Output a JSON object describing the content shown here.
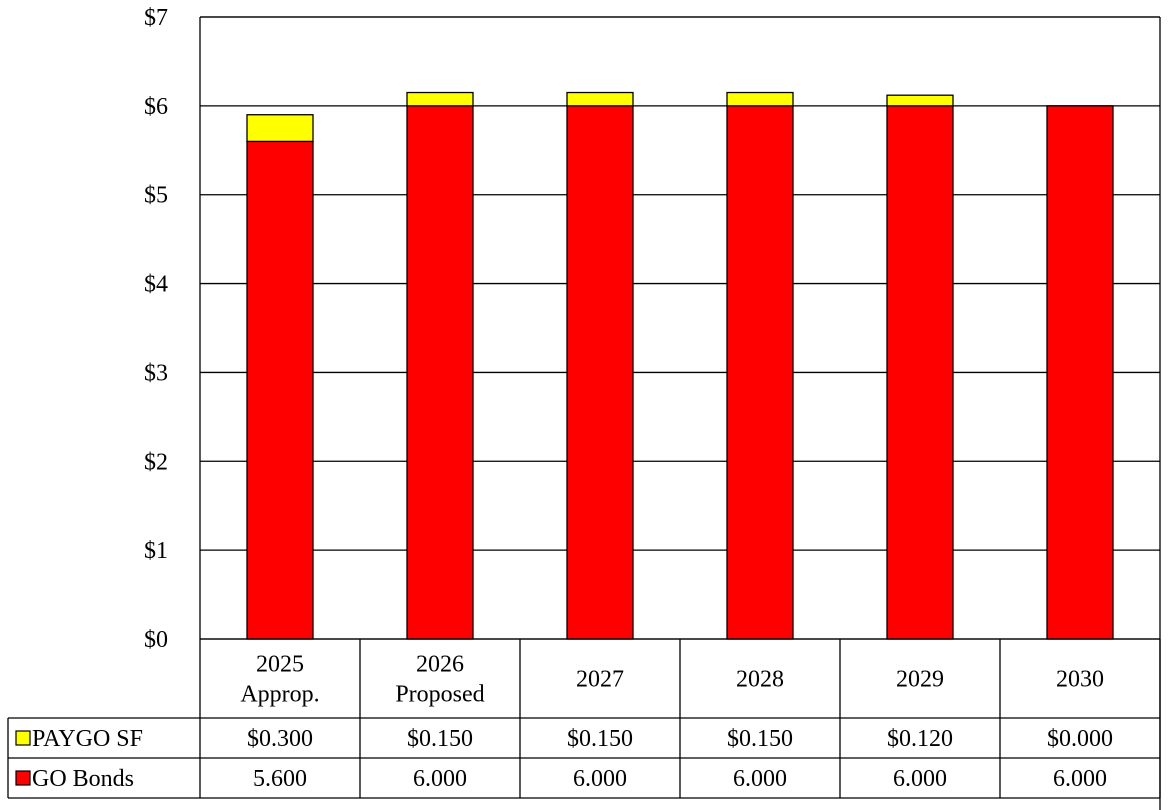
{
  "chart_data": {
    "type": "bar",
    "stacked": true,
    "title": "",
    "xlabel": "",
    "ylabel": "",
    "ylim": [
      0,
      7
    ],
    "yticks": [
      "$0",
      "$1",
      "$2",
      "$3",
      "$4",
      "$5",
      "$6",
      "$7"
    ],
    "grid": true,
    "categories": [
      [
        "2025",
        "Approp."
      ],
      [
        "2026",
        "Proposed"
      ],
      [
        "2027"
      ],
      [
        "2028"
      ],
      [
        "2029"
      ],
      [
        "2030"
      ]
    ],
    "series": [
      {
        "name": "GO Bonds",
        "color": "#ff0000",
        "values": [
          5.6,
          6.0,
          6.0,
          6.0,
          6.0,
          6.0
        ],
        "table_labels": [
          "5.600",
          "6.000",
          "6.000",
          "6.000",
          "6.000",
          "6.000"
        ]
      },
      {
        "name": "PAYGO SF",
        "color": "#ffff00",
        "values": [
          0.3,
          0.15,
          0.15,
          0.15,
          0.12,
          0.0
        ],
        "table_labels": [
          "$0.300",
          "$0.150",
          "$0.150",
          "$0.150",
          "$0.120",
          "$0.000"
        ]
      }
    ],
    "table_row_order": [
      "PAYGO SF",
      "GO Bonds"
    ]
  }
}
